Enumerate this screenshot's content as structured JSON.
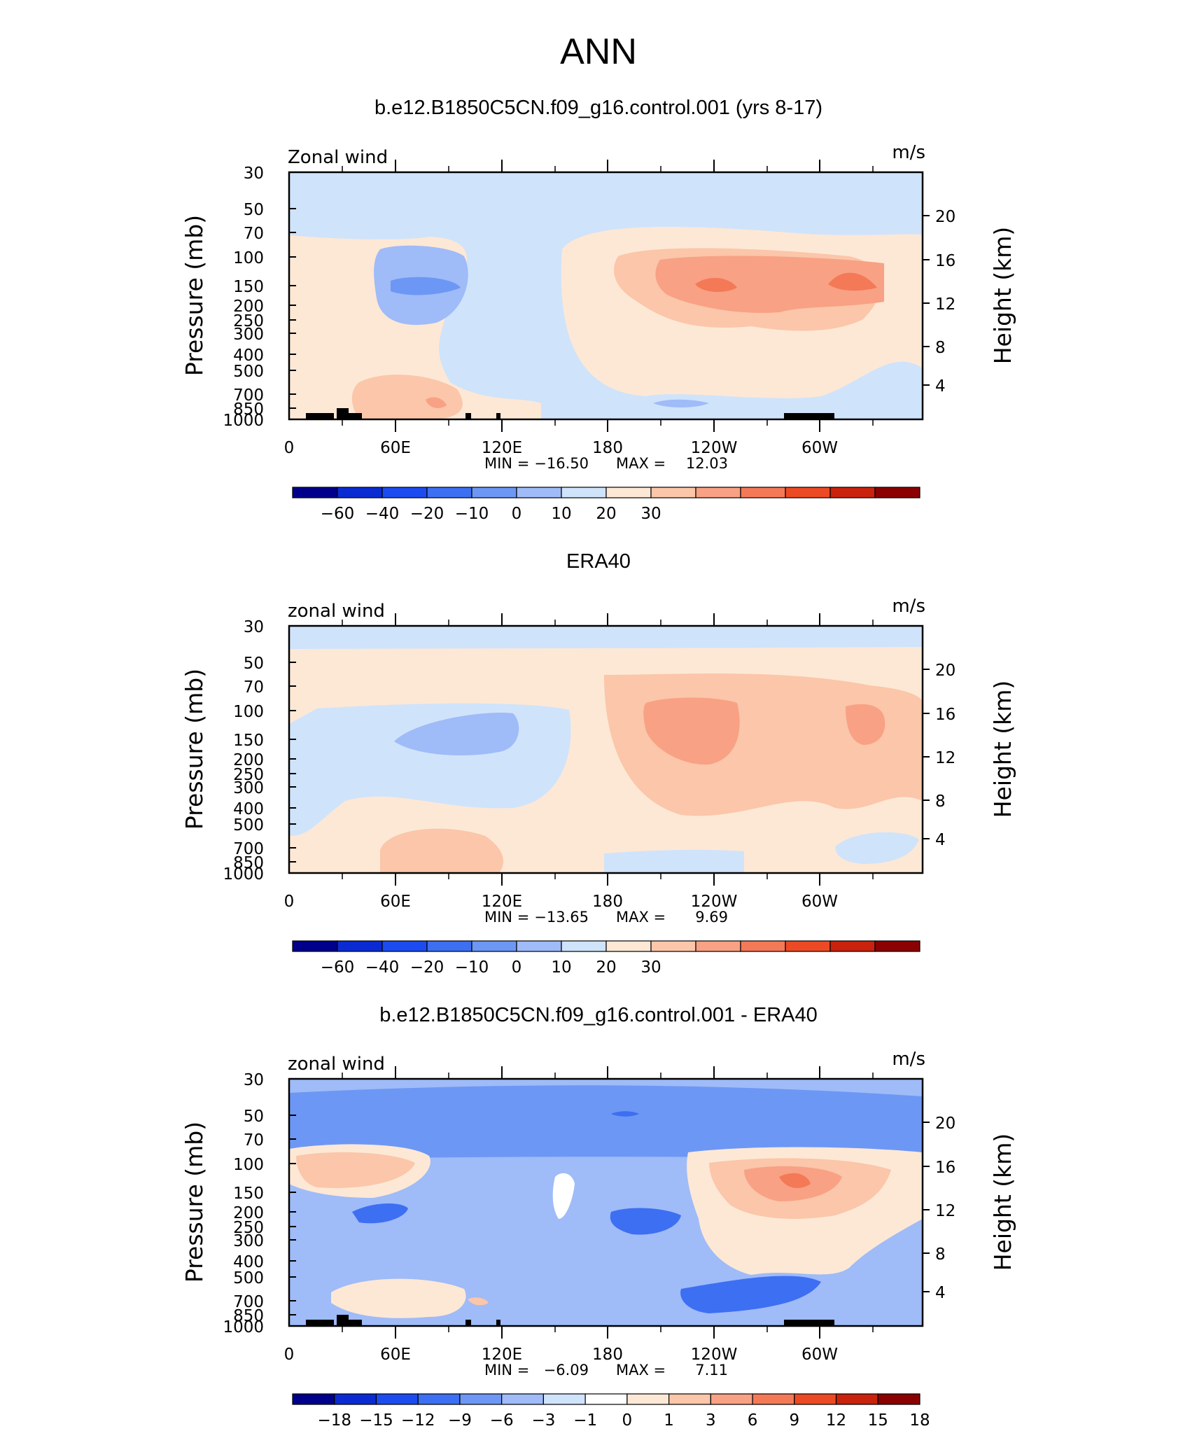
{
  "figure": {
    "title": "ANN"
  },
  "colors": {
    "abs_scale": [
      "#00008b",
      "#0b2bd2",
      "#1c4cf0",
      "#3d6ff2",
      "#6d97f4",
      "#9fbbf8",
      "#cfe3fb",
      "#fde8d6",
      "#fbc6a9",
      "#f8a184",
      "#f47957",
      "#ec4a24",
      "#c9220d",
      "#8b0000"
    ],
    "diff_scale": [
      "#00008b",
      "#0b2bd2",
      "#1c4cf0",
      "#3d6ff2",
      "#6d97f4",
      "#9fbbf8",
      "#cfe3fb",
      "#ffffff",
      "#fde8d6",
      "#fbc6a9",
      "#f8a184",
      "#f47957",
      "#ec4a24",
      "#c9220d",
      "#8b0000"
    ],
    "topography": "#000000"
  },
  "chart_data": [
    {
      "type": "heatmap",
      "title": "b.e12.B1850C5CN.f09_g16.control.001 (yrs 8-17)",
      "left_label": "Zonal wind",
      "right_label": "m/s",
      "ylabel": "Pressure (mb)",
      "ylabel_right": "Height (km)",
      "yticks": [
        "30",
        "50",
        "70",
        "100",
        "150",
        "200",
        "250",
        "300",
        "400",
        "500",
        "700",
        "850",
        "1000"
      ],
      "yticks_right": [
        "20",
        "16",
        "12",
        "8",
        "4"
      ],
      "xticks": [
        "0",
        "60E",
        "120E",
        "180",
        "120W",
        "60W"
      ],
      "stats": {
        "min_label": "MIN =",
        "min": "−16.50",
        "max_label": "MAX =",
        "max": "12.03"
      },
      "colorbar_labels": [
        "−60",
        "−40",
        "−20",
        "−10",
        "0",
        "10",
        "20",
        "30"
      ],
      "topography": true
    },
    {
      "type": "heatmap",
      "title": "ERA40",
      "left_label": "zonal wind",
      "right_label": "m/s",
      "ylabel": "Pressure (mb)",
      "ylabel_right": "Height (km)",
      "yticks": [
        "30",
        "50",
        "70",
        "100",
        "150",
        "200",
        "250",
        "300",
        "400",
        "500",
        "700",
        "850",
        "1000"
      ],
      "yticks_right": [
        "20",
        "16",
        "12",
        "8",
        "4"
      ],
      "xticks": [
        "0",
        "60E",
        "120E",
        "180",
        "120W",
        "60W"
      ],
      "stats": {
        "min_label": "MIN =",
        "min": "−13.65",
        "max_label": "MAX =",
        "max": "9.69"
      },
      "colorbar_labels": [
        "−60",
        "−40",
        "−20",
        "−10",
        "0",
        "10",
        "20",
        "30"
      ],
      "topography": false
    },
    {
      "type": "heatmap",
      "title": "b.e12.B1850C5CN.f09_g16.control.001 - ERA40",
      "left_label": "zonal wind",
      "right_label": "m/s",
      "ylabel": "Pressure (mb)",
      "ylabel_right": "Height (km)",
      "yticks": [
        "30",
        "50",
        "70",
        "100",
        "150",
        "200",
        "250",
        "300",
        "400",
        "500",
        "700",
        "850",
        "1000"
      ],
      "yticks_right": [
        "20",
        "16",
        "12",
        "8",
        "4"
      ],
      "xticks": [
        "0",
        "60E",
        "120E",
        "180",
        "120W",
        "60W"
      ],
      "stats": {
        "min_label": "MIN =",
        "min": "−6.09",
        "max_label": "MAX =",
        "max": "7.11"
      },
      "colorbar_labels": [
        "−18",
        "−15",
        "−12",
        "−9",
        "−6",
        "−3",
        "−1",
        "0",
        "1",
        "3",
        "6",
        "9",
        "12",
        "15",
        "18"
      ],
      "topography": true
    }
  ]
}
